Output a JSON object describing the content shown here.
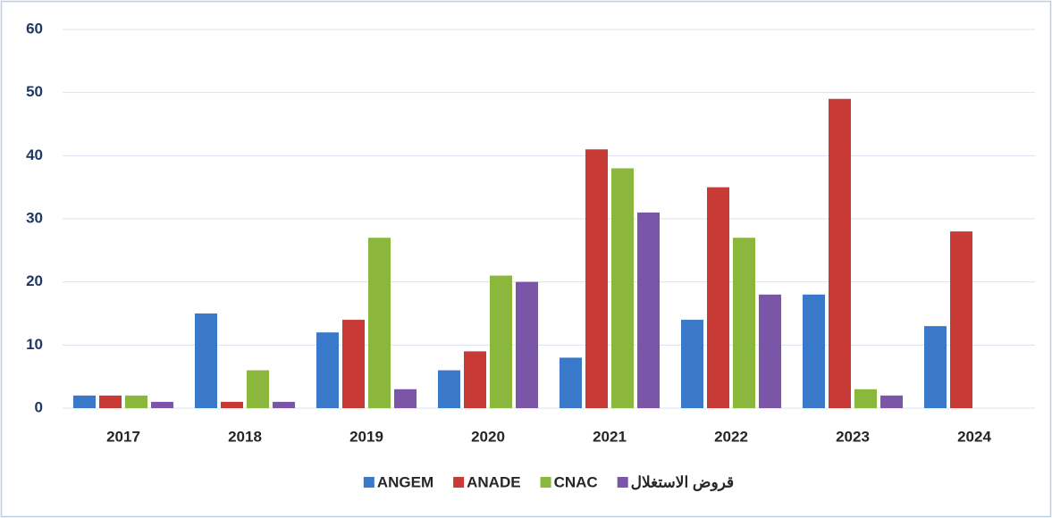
{
  "chart_data": {
    "type": "bar",
    "categories": [
      "2017",
      "2018",
      "2019",
      "2020",
      "2021",
      "2022",
      "2023",
      "2024"
    ],
    "series": [
      {
        "name": "ANGEM",
        "color": "#3a78c9",
        "values": [
          2,
          15,
          12,
          6,
          8,
          14,
          18,
          13
        ]
      },
      {
        "name": "ANADE",
        "color": "#c83a36",
        "values": [
          2,
          1,
          14,
          9,
          41,
          35,
          49,
          28
        ]
      },
      {
        "name": "CNAC",
        "color": "#8bb83c",
        "values": [
          2,
          6,
          27,
          21,
          38,
          27,
          3,
          0
        ]
      },
      {
        "name": "قروض الاستغلال",
        "color": "#7b55a8",
        "values": [
          1,
          1,
          3,
          20,
          31,
          18,
          2,
          0
        ]
      }
    ],
    "ylim": [
      0,
      60
    ],
    "yticks": [
      0,
      10,
      20,
      30,
      40,
      50,
      60
    ],
    "grid": true,
    "legend": "bottom"
  }
}
